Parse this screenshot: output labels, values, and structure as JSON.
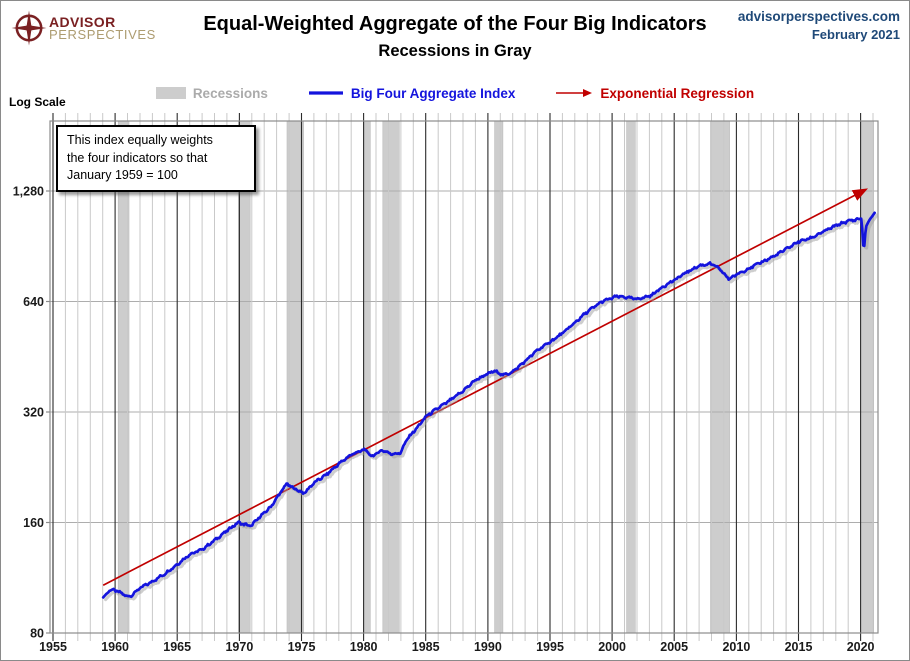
{
  "header": {
    "logo_line1": "ADVISOR",
    "logo_line2": "PERSPECTIVES",
    "title_line1": "Equal-Weighted Aggregate of the Four Big Indicators",
    "title_line2": "Recessions in Gray",
    "site": "advisorperspectives.com",
    "date": "February 2021"
  },
  "legend": {
    "recessions_label": "Recessions",
    "blue_label": "Big Four Aggregate Index",
    "red_label": "Exponential Regression"
  },
  "axis_note": "Log Scale",
  "annotation": {
    "line1": "This index equally weights",
    "line2": "the four indicators  so that",
    "line3": "January 1959  = 100"
  },
  "colors": {
    "blue": "#1414DD",
    "red": "#C00000",
    "navy": "#1F4978",
    "maroon": "#7A2022",
    "tan": "#AD9C70",
    "band": "#CDCDCD",
    "band_edge": "#BBBBBB",
    "grid_minor": "#C9C9C9",
    "grid_major": "#2B2B2B",
    "grid_h": "#ADADAD",
    "axis": "#8C8C8C",
    "label": "#1A1A1A",
    "legend_gray": "#ABABAB",
    "shadow": "#9E9E9E"
  },
  "chart_data": {
    "type": "line",
    "title": "Equal-Weighted Aggregate of the Four Big Indicators",
    "subtitle": "Recessions in Gray",
    "y_scale": "log",
    "xlabel": "",
    "ylabel": "Log Scale",
    "xlim": [
      1955,
      2021.4
    ],
    "ylim": [
      80,
      1985
    ],
    "x_ticks": [
      1955,
      1960,
      1965,
      1970,
      1975,
      1980,
      1985,
      1990,
      1995,
      2000,
      2005,
      2010,
      2015,
      2020
    ],
    "y_ticks": [
      {
        "v": 1280,
        "label": "1,280"
      },
      {
        "v": 640,
        "label": "640"
      },
      {
        "v": 320,
        "label": "320"
      },
      {
        "v": 160,
        "label": "160"
      },
      {
        "v": 80,
        "label": "80"
      }
    ],
    "recessions": [
      [
        1960.25,
        1961.12
      ],
      [
        1969.92,
        1970.87
      ],
      [
        1973.83,
        1975.17
      ],
      [
        1980.0,
        1980.54
      ],
      [
        1981.54,
        1982.87
      ],
      [
        1990.54,
        1991.21
      ],
      [
        2001.17,
        2001.87
      ],
      [
        2007.92,
        2009.46
      ],
      [
        2020.08,
        2021.05
      ]
    ],
    "series": [
      {
        "name": "Big Four Aggregate Index",
        "style": "wiggly-monthly",
        "keypoints": [
          [
            1959.04,
            100
          ],
          [
            1959.6,
            105
          ],
          [
            1960.2,
            104
          ],
          [
            1960.75,
            101.5
          ],
          [
            1961.2,
            100.5
          ],
          [
            1962,
            106
          ],
          [
            1963,
            110.5
          ],
          [
            1964,
            116
          ],
          [
            1965,
            123
          ],
          [
            1966,
            131
          ],
          [
            1967,
            135
          ],
          [
            1968,
            143
          ],
          [
            1969,
            152
          ],
          [
            1969.9,
            160
          ],
          [
            1970.4,
            158
          ],
          [
            1970.95,
            156.5
          ],
          [
            1971.5,
            164
          ],
          [
            1972.5,
            176
          ],
          [
            1973.8,
            204
          ],
          [
            1974.3,
            199
          ],
          [
            1975.2,
            192
          ],
          [
            1976,
            205
          ],
          [
            1977,
            216
          ],
          [
            1978,
            231
          ],
          [
            1979,
            245
          ],
          [
            1980.1,
            253
          ],
          [
            1980.65,
            242
          ],
          [
            1981.5,
            252
          ],
          [
            1982.2,
            246
          ],
          [
            1982.95,
            247
          ],
          [
            1983.5,
            270
          ],
          [
            1984.5,
            295
          ],
          [
            1985,
            311
          ],
          [
            1986,
            328
          ],
          [
            1987,
            345
          ],
          [
            1988,
            365
          ],
          [
            1989,
            391
          ],
          [
            1990.5,
            414
          ],
          [
            1991.3,
            403
          ],
          [
            1992,
            412
          ],
          [
            1993,
            440
          ],
          [
            1994,
            472
          ],
          [
            1995,
            496
          ],
          [
            1996,
            524
          ],
          [
            1997,
            560
          ],
          [
            1998,
            600
          ],
          [
            1999.2,
            640
          ],
          [
            2000.4,
            661
          ],
          [
            2001.1,
            657
          ],
          [
            2001.9,
            650
          ],
          [
            2002.5,
            655
          ],
          [
            2003.2,
            666
          ],
          [
            2004,
            699
          ],
          [
            2005,
            731
          ],
          [
            2006,
            769
          ],
          [
            2007,
            800
          ],
          [
            2007.9,
            812
          ],
          [
            2008.5,
            792
          ],
          [
            2009.4,
            737
          ],
          [
            2010,
            757
          ],
          [
            2011,
            787
          ],
          [
            2012,
            818
          ],
          [
            2013,
            849
          ],
          [
            2014,
            889
          ],
          [
            2015,
            931
          ],
          [
            2016,
            953
          ],
          [
            2017,
            991
          ],
          [
            2018,
            1030
          ],
          [
            2019,
            1060
          ],
          [
            2019.8,
            1072
          ],
          [
            2020.08,
            1076
          ],
          [
            2020.25,
            868
          ],
          [
            2020.42,
            1020
          ],
          [
            2020.6,
            1050
          ],
          [
            2020.75,
            1072
          ],
          [
            2020.92,
            1090
          ],
          [
            2021.13,
            1116
          ]
        ]
      },
      {
        "name": "Exponential Regression",
        "style": "straight-log-arrow",
        "points": [
          [
            1959.04,
            108
          ],
          [
            2020.35,
            1288
          ]
        ]
      }
    ]
  }
}
